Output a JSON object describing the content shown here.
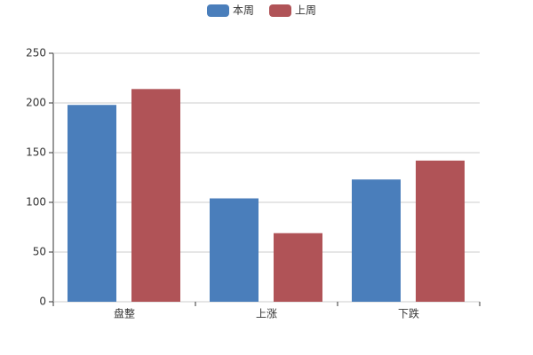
{
  "chart_data": {
    "type": "bar",
    "categories": [
      "盘整",
      "上涨",
      "下跌"
    ],
    "series": [
      {
        "name": "本周",
        "color": "#4a7ebb",
        "values": [
          198,
          104,
          123
        ]
      },
      {
        "name": "上周",
        "color": "#b05357",
        "values": [
          214,
          69,
          142
        ]
      }
    ],
    "ylim": [
      0,
      250
    ],
    "yticks": [
      0,
      50,
      100,
      150,
      200,
      250
    ],
    "grid": true,
    "legend": "top"
  }
}
